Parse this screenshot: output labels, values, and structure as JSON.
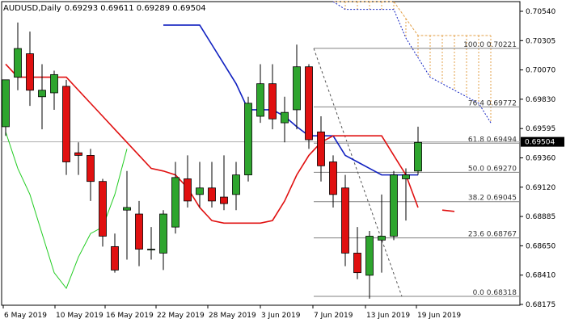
{
  "header": {
    "symbol": "AUDUSD,Daily",
    "ohlc": "0.69293 0.69611 0.69289 0.69504"
  },
  "current_price": "0.69504",
  "colors": {
    "bull": "#2ea52e",
    "bear": "#e01010",
    "blue_line": "#1020c0",
    "red_line": "#e01010",
    "green_line": "#22cc22",
    "cloud": "#e3a14a",
    "fib": "#808080",
    "price_box": "#000000"
  },
  "chart_data": {
    "type": "candlestick",
    "title": "",
    "ylim": [
      0.6825,
      0.7058
    ],
    "y_ticks": [
      "0.70540",
      "0.70305",
      "0.70070",
      "0.69830",
      "0.69595",
      "0.69360",
      "0.69120",
      "0.68885",
      "0.68650",
      "0.68410",
      "0.68175"
    ],
    "x_ticks": [
      "6 May 2019",
      "10 May 2019",
      "16 May 2019",
      "22 May 2019",
      "28 May 2019",
      "3 Jun 2019",
      "7 Jun 2019",
      "13 Jun 2019",
      "19 Jun 2019"
    ],
    "candles": [
      {
        "o": 0.6962,
        "h": 0.6998,
        "l": 0.6955,
        "c": 0.6998
      },
      {
        "o": 0.7,
        "h": 0.7042,
        "l": 0.699,
        "c": 0.7022
      },
      {
        "o": 0.7018,
        "h": 0.7035,
        "l": 0.6978,
        "c": 0.699
      },
      {
        "o": 0.6985,
        "h": 0.701,
        "l": 0.696,
        "c": 0.699
      },
      {
        "o": 0.6988,
        "h": 0.7005,
        "l": 0.6975,
        "c": 0.7002
      },
      {
        "o": 0.6993,
        "h": 0.6998,
        "l": 0.6925,
        "c": 0.6935
      },
      {
        "o": 0.6942,
        "h": 0.695,
        "l": 0.6925,
        "c": 0.694
      },
      {
        "o": 0.694,
        "h": 0.6945,
        "l": 0.6905,
        "c": 0.692
      },
      {
        "o": 0.692,
        "h": 0.6922,
        "l": 0.687,
        "c": 0.6878
      },
      {
        "o": 0.687,
        "h": 0.688,
        "l": 0.685,
        "c": 0.6852
      },
      {
        "o": 0.6898,
        "h": 0.6928,
        "l": 0.686,
        "c": 0.69
      },
      {
        "o": 0.6895,
        "h": 0.6905,
        "l": 0.6855,
        "c": 0.6868
      },
      {
        "o": 0.6868,
        "h": 0.6885,
        "l": 0.686,
        "c": 0.6868
      },
      {
        "o": 0.6865,
        "h": 0.6898,
        "l": 0.6852,
        "c": 0.6895
      },
      {
        "o": 0.6885,
        "h": 0.6935,
        "l": 0.688,
        "c": 0.6923
      },
      {
        "o": 0.6922,
        "h": 0.694,
        "l": 0.69,
        "c": 0.6905
      },
      {
        "o": 0.691,
        "h": 0.6935,
        "l": 0.69,
        "c": 0.6915
      },
      {
        "o": 0.6915,
        "h": 0.6935,
        "l": 0.69,
        "c": 0.6905
      },
      {
        "o": 0.6908,
        "h": 0.694,
        "l": 0.6898,
        "c": 0.6903
      },
      {
        "o": 0.691,
        "h": 0.6935,
        "l": 0.6898,
        "c": 0.6925
      },
      {
        "o": 0.6925,
        "h": 0.6985,
        "l": 0.692,
        "c": 0.698
      },
      {
        "o": 0.697,
        "h": 0.701,
        "l": 0.6965,
        "c": 0.6995
      },
      {
        "o": 0.6995,
        "h": 0.701,
        "l": 0.696,
        "c": 0.6968
      },
      {
        "o": 0.6965,
        "h": 0.6985,
        "l": 0.695,
        "c": 0.6973
      },
      {
        "o": 0.6975,
        "h": 0.7025,
        "l": 0.696,
        "c": 0.7008
      },
      {
        "o": 0.7008,
        "h": 0.701,
        "l": 0.6945,
        "c": 0.6952
      },
      {
        "o": 0.6958,
        "h": 0.697,
        "l": 0.692,
        "c": 0.6932
      },
      {
        "o": 0.6935,
        "h": 0.694,
        "l": 0.69,
        "c": 0.691
      },
      {
        "o": 0.6915,
        "h": 0.6925,
        "l": 0.6855,
        "c": 0.6865
      },
      {
        "o": 0.6865,
        "h": 0.6885,
        "l": 0.6845,
        "c": 0.685
      },
      {
        "o": 0.6848,
        "h": 0.6882,
        "l": 0.683,
        "c": 0.6878
      },
      {
        "o": 0.6875,
        "h": 0.691,
        "l": 0.685,
        "c": 0.6878
      },
      {
        "o": 0.6878,
        "h": 0.6928,
        "l": 0.6875,
        "c": 0.6925
      },
      {
        "o": 0.6922,
        "h": 0.693,
        "l": 0.689,
        "c": 0.6925
      },
      {
        "o": 0.6928,
        "h": 0.6962,
        "l": 0.6925,
        "c": 0.695
      }
    ],
    "series": [
      {
        "type": "line",
        "color": "#1020c0",
        "values": [
          null,
          null,
          null,
          null,
          null,
          null,
          null,
          null,
          null,
          null,
          null,
          null,
          null,
          0.704,
          0.704,
          0.704,
          0.704,
          0.7025,
          0.701,
          0.6995,
          0.6975,
          0.6975,
          0.6975,
          0.697,
          0.6962,
          0.6955,
          0.6955,
          0.6955,
          0.694,
          0.6935,
          0.693,
          0.6925,
          0.6925,
          0.6925,
          0.6925
        ]
      },
      {
        "type": "line",
        "color": "#e01010",
        "values": [
          0.701,
          0.7,
          0.7,
          0.7,
          0.7,
          0.7,
          0.699,
          0.698,
          0.697,
          0.696,
          0.695,
          0.694,
          0.693,
          0.6928,
          0.6925,
          0.6915,
          0.69,
          0.689,
          0.6888,
          0.6888,
          0.6888,
          0.6888,
          0.689,
          0.6905,
          0.6925,
          0.694,
          0.695,
          0.6955,
          0.6955,
          0.6955,
          0.6955,
          0.6955,
          0.694,
          0.6925,
          0.69,
          null,
          0.6898,
          0.6897
        ]
      },
      {
        "type": "line",
        "color": "#22cc22",
        "values": [
          0.6958,
          0.693,
          0.691,
          0.688,
          0.685,
          0.6838,
          0.6862,
          0.688,
          0.6885,
          0.691,
          0.6945
        ]
      }
    ],
    "cloud": {
      "color": "#e3a14a",
      "upper": [
        null,
        null,
        null,
        null,
        null,
        null,
        null,
        null,
        null,
        null,
        null,
        null,
        null,
        null,
        null,
        null,
        null,
        null,
        null,
        null,
        null,
        null,
        null,
        null,
        null,
        null,
        null,
        0.7058,
        0.7058,
        0.7058,
        0.7058,
        0.7058,
        0.7058,
        0.7045,
        0.7032,
        0.7032,
        0.7032,
        0.7032,
        0.7032,
        0.7032,
        0.7032
      ],
      "lower": [
        null,
        null,
        null,
        null,
        null,
        null,
        null,
        null,
        null,
        null,
        null,
        null,
        null,
        null,
        null,
        null,
        null,
        null,
        null,
        null,
        null,
        null,
        null,
        null,
        null,
        null,
        null,
        0.7058,
        0.7052,
        0.7052,
        0.7052,
        0.7052,
        0.7052,
        0.703,
        0.7015,
        0.7,
        0.6995,
        0.699,
        0.6985,
        0.698,
        0.6965
      ]
    },
    "fib_levels": [
      {
        "pct": "100.0",
        "price": "0.70221",
        "value": 0.70221
      },
      {
        "pct": "76.4",
        "price": "0.69772",
        "value": 0.69772
      },
      {
        "pct": "61.8",
        "price": "0.69494",
        "value": 0.69494
      },
      {
        "pct": "50.0",
        "price": "0.69270",
        "value": 0.6927
      },
      {
        "pct": "38.2",
        "price": "0.69045",
        "value": 0.69045
      },
      {
        "pct": "23.6",
        "price": "0.68767",
        "value": 0.68767
      },
      {
        "pct": "0.0",
        "price": "0.68318",
        "value": 0.68318
      }
    ],
    "horizontal_line": 0.69504
  }
}
